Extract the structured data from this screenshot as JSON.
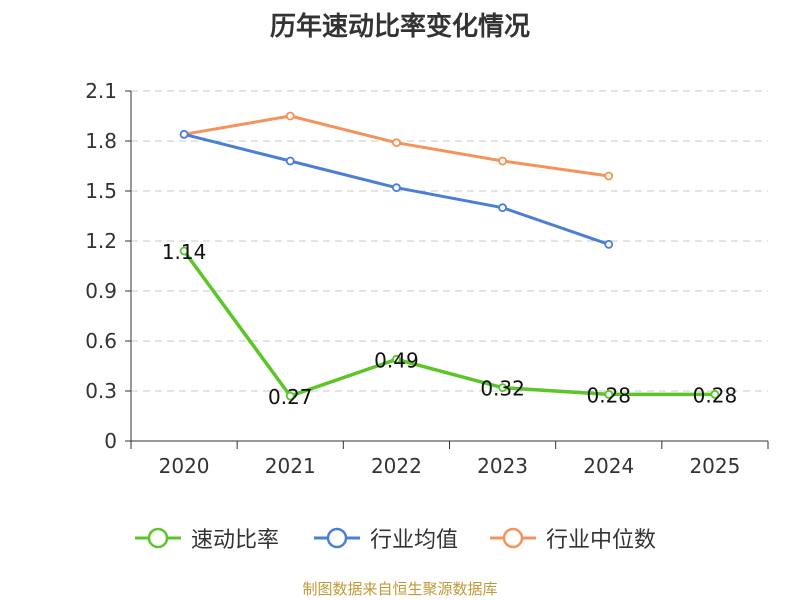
{
  "chart_data": {
    "type": "line",
    "title": "历年速动比率变化情况",
    "categories": [
      "2020",
      "2021",
      "2022",
      "2023",
      "2024",
      "2025"
    ],
    "ylim": [
      0,
      2.1
    ],
    "yticks": [
      "0",
      "0.3",
      "0.6",
      "0.9",
      "1.2",
      "1.5",
      "1.8",
      "2.1"
    ],
    "grid": true,
    "legend_position": "bottom",
    "series": [
      {
        "name": "速动比率",
        "color": "#5cc529",
        "values": [
          1.14,
          0.27,
          0.49,
          0.32,
          0.28,
          0.28
        ],
        "labels": [
          "1.14",
          "0.27",
          "0.49",
          "0.32",
          "0.28",
          "0.28"
        ]
      },
      {
        "name": "行业均值",
        "color": "#4a7fd8",
        "values": [
          1.84,
          1.68,
          1.52,
          1.4,
          1.18,
          null
        ]
      },
      {
        "name": "行业中位数",
        "color": "#f4935c",
        "values": [
          1.84,
          1.95,
          1.79,
          1.68,
          1.59,
          null
        ]
      }
    ]
  },
  "source": {
    "text": "制图数据来自恒生聚源数据库",
    "color": "#c09a3a"
  }
}
